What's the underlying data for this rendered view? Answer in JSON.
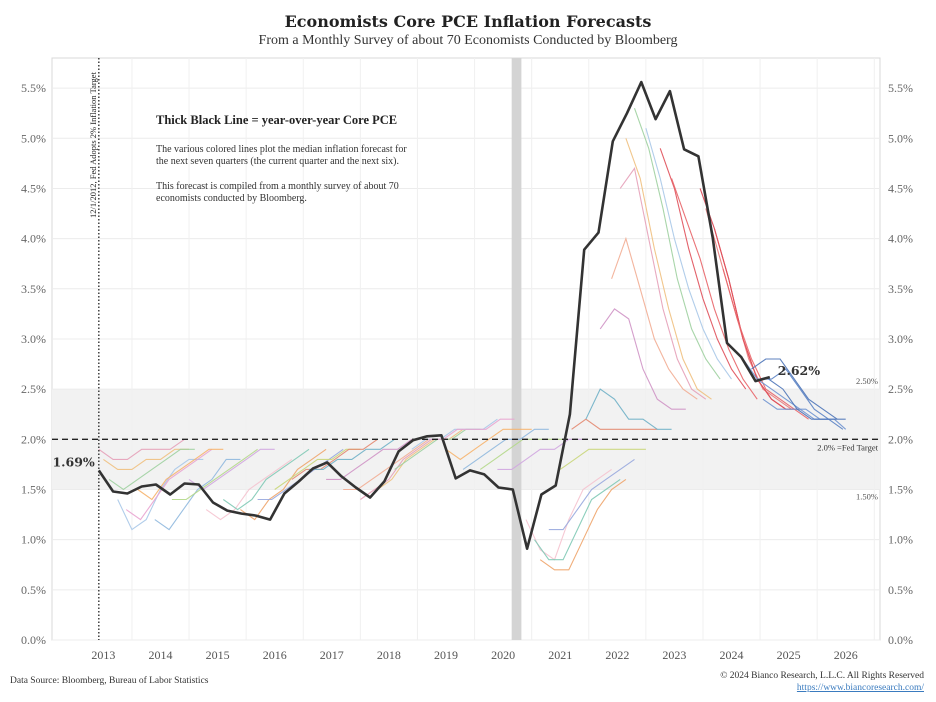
{
  "chart_data": {
    "type": "line",
    "title": "Economists Core PCE Inflation Forecasts",
    "subtitle": "From a Monthly Survey of about 70 Economists Conducted by Bloomberg",
    "y_ticks": [
      "0.0%",
      "0.5%",
      "1.0%",
      "1.5%",
      "2.0%",
      "2.5%",
      "3.0%",
      "3.5%",
      "4.0%",
      "4.5%",
      "5.0%",
      "5.5%"
    ],
    "ylim": [
      0,
      5.8
    ],
    "x_ticks": [
      "2013",
      "2014",
      "2015",
      "2016",
      "2017",
      "2018",
      "2019",
      "2020",
      "2021",
      "2022",
      "2023",
      "2024",
      "2025",
      "2026"
    ],
    "xlim": [
      2012.1,
      2026.6
    ],
    "fed_target": 2.0,
    "fed_target_label": "2.0% =Fed Target",
    "band": [
      1.5,
      2.5
    ],
    "band_upper_label": "2.50%",
    "band_lower_label": "1.50%",
    "vline_label": "12/1/2012, Fed Adopts 2% Inflation Target",
    "vline_x": 2012.92,
    "recession": [
      2020.15,
      2020.32
    ],
    "start_label": "1.69%",
    "end_label": "2.62%",
    "annotation_heading": "Thick Black Line = year-over-year Core PCE",
    "annotation_text_1": "The various colored lines plot the median inflation forecast for",
    "annotation_text_2": "the next seven quarters (the current quarter and the next six).",
    "annotation_text_3": "This forecast is compiled from a monthly survey of about 70",
    "annotation_text_4": "economists conducted by Bloomberg.",
    "actual_series": {
      "name": "Year-over-year Core PCE",
      "x": [
        2012.92,
        2013.17,
        2013.42,
        2013.67,
        2013.92,
        2014.17,
        2014.42,
        2014.67,
        2014.92,
        2015.17,
        2015.42,
        2015.67,
        2015.92,
        2016.17,
        2016.42,
        2016.67,
        2016.92,
        2017.17,
        2017.42,
        2017.67,
        2017.92,
        2018.17,
        2018.42,
        2018.67,
        2018.92,
        2019.17,
        2019.42,
        2019.67,
        2019.92,
        2020.17,
        2020.42,
        2020.67,
        2020.92,
        2021.17,
        2021.42,
        2021.67,
        2021.92,
        2022.17,
        2022.42,
        2022.67,
        2022.92,
        2023.17,
        2023.42,
        2023.67,
        2023.92,
        2024.17,
        2024.42,
        2024.67
      ],
      "values": [
        1.69,
        1.48,
        1.46,
        1.53,
        1.55,
        1.45,
        1.56,
        1.55,
        1.37,
        1.29,
        1.26,
        1.24,
        1.2,
        1.46,
        1.58,
        1.71,
        1.77,
        1.63,
        1.52,
        1.42,
        1.58,
        1.88,
        1.99,
        2.03,
        2.04,
        1.61,
        1.69,
        1.65,
        1.52,
        1.5,
        0.91,
        1.45,
        1.54,
        2.25,
        3.89,
        4.06,
        4.97,
        5.25,
        5.56,
        5.19,
        5.47,
        4.89,
        4.82,
        4.01,
        2.96,
        2.82,
        2.58,
        2.62
      ]
    },
    "forecast_series": [
      {
        "x": [
          2012.92,
          2013.17,
          2013.42,
          2013.67,
          2013.92,
          2014.17,
          2014.42
        ],
        "values": [
          1.9,
          1.8,
          1.8,
          1.9,
          1.9,
          1.9,
          2.0
        ]
      },
      {
        "x": [
          2013.0,
          2013.25,
          2013.5,
          2013.75,
          2014.0,
          2014.25,
          2014.5
        ],
        "values": [
          1.8,
          1.7,
          1.7,
          1.8,
          1.8,
          1.9,
          1.9
        ]
      },
      {
        "x": [
          2013.1,
          2013.35,
          2013.6,
          2013.85,
          2014.1,
          2014.35,
          2014.6
        ],
        "values": [
          1.6,
          1.5,
          1.6,
          1.7,
          1.8,
          1.9,
          1.9
        ]
      },
      {
        "x": [
          2013.25,
          2013.5,
          2013.75,
          2014.0,
          2014.25,
          2014.5,
          2014.75
        ],
        "values": [
          1.4,
          1.1,
          1.2,
          1.5,
          1.7,
          1.8,
          1.8
        ]
      },
      {
        "x": [
          2013.4,
          2013.65,
          2013.9,
          2014.15,
          2014.4,
          2014.65,
          2014.9
        ],
        "values": [
          1.3,
          1.2,
          1.4,
          1.6,
          1.7,
          1.8,
          1.9
        ]
      },
      {
        "x": [
          2013.6,
          2013.85,
          2014.1,
          2014.35,
          2014.6,
          2014.85,
          2015.1
        ],
        "values": [
          1.5,
          1.4,
          1.6,
          1.7,
          1.8,
          1.9,
          1.9
        ]
      },
      {
        "x": [
          2013.9,
          2014.15,
          2014.4,
          2014.65,
          2014.9,
          2015.15,
          2015.4
        ],
        "values": [
          1.2,
          1.1,
          1.3,
          1.5,
          1.6,
          1.8,
          1.8
        ]
      },
      {
        "x": [
          2014.2,
          2014.45,
          2014.7,
          2014.95,
          2015.2,
          2015.45,
          2015.7
        ],
        "values": [
          1.4,
          1.4,
          1.5,
          1.6,
          1.7,
          1.8,
          1.9
        ]
      },
      {
        "x": [
          2014.5,
          2014.75,
          2015.0,
          2015.25,
          2015.5,
          2015.75,
          2016.0
        ],
        "values": [
          1.6,
          1.5,
          1.6,
          1.7,
          1.8,
          1.9,
          1.9
        ]
      },
      {
        "x": [
          2014.8,
          2015.05,
          2015.3,
          2015.55,
          2015.8,
          2016.05,
          2016.3
        ],
        "values": [
          1.3,
          1.2,
          1.3,
          1.5,
          1.6,
          1.7,
          1.8
        ]
      },
      {
        "x": [
          2015.1,
          2015.35,
          2015.6,
          2015.85,
          2016.1,
          2016.35,
          2016.6
        ],
        "values": [
          1.4,
          1.3,
          1.4,
          1.6,
          1.7,
          1.8,
          1.9
        ]
      },
      {
        "x": [
          2015.4,
          2015.65,
          2015.9,
          2016.15,
          2016.4,
          2016.65,
          2016.9
        ],
        "values": [
          1.3,
          1.2,
          1.4,
          1.5,
          1.7,
          1.8,
          1.9
        ]
      },
      {
        "x": [
          2015.7,
          2015.95,
          2016.2,
          2016.45,
          2016.7,
          2016.95,
          2017.2
        ],
        "values": [
          1.4,
          1.4,
          1.5,
          1.6,
          1.7,
          1.8,
          1.9
        ]
      },
      {
        "x": [
          2016.0,
          2016.25,
          2016.5,
          2016.75,
          2017.0,
          2017.25,
          2017.5
        ],
        "values": [
          1.5,
          1.6,
          1.7,
          1.8,
          1.8,
          1.9,
          1.9
        ]
      },
      {
        "x": [
          2016.3,
          2016.55,
          2016.8,
          2017.05,
          2017.3,
          2017.55,
          2017.8
        ],
        "values": [
          1.6,
          1.7,
          1.7,
          1.8,
          1.9,
          1.9,
          2.0
        ]
      },
      {
        "x": [
          2016.6,
          2016.85,
          2017.1,
          2017.35,
          2017.6,
          2017.85,
          2018.1
        ],
        "values": [
          1.7,
          1.7,
          1.8,
          1.8,
          1.9,
          1.9,
          2.0
        ]
      },
      {
        "x": [
          2016.9,
          2017.15,
          2017.4,
          2017.65,
          2017.9,
          2018.15,
          2018.4
        ],
        "values": [
          1.6,
          1.6,
          1.7,
          1.8,
          1.9,
          1.9,
          2.0
        ]
      },
      {
        "x": [
          2017.2,
          2017.45,
          2017.7,
          2017.95,
          2018.2,
          2018.45,
          2018.7
        ],
        "values": [
          1.5,
          1.5,
          1.6,
          1.7,
          1.8,
          1.9,
          2.0
        ]
      },
      {
        "x": [
          2017.5,
          2017.75,
          2018.0,
          2018.25,
          2018.5,
          2018.75,
          2019.0
        ],
        "values": [
          1.4,
          1.5,
          1.6,
          1.8,
          1.9,
          2.0,
          2.0
        ]
      },
      {
        "x": [
          2017.8,
          2018.05,
          2018.3,
          2018.55,
          2018.8,
          2019.05,
          2019.3
        ],
        "values": [
          1.5,
          1.6,
          1.8,
          1.9,
          2.0,
          2.0,
          2.1
        ]
      },
      {
        "x": [
          2018.1,
          2018.35,
          2018.6,
          2018.85,
          2019.1,
          2019.35,
          2019.6
        ],
        "values": [
          1.7,
          1.8,
          1.9,
          2.0,
          2.0,
          2.1,
          2.1
        ]
      },
      {
        "x": [
          2018.4,
          2018.65,
          2018.9,
          2019.15,
          2019.4,
          2019.65,
          2019.9
        ],
        "values": [
          1.9,
          2.0,
          2.0,
          2.1,
          2.1,
          2.1,
          2.2
        ]
      },
      {
        "x": [
          2018.7,
          2018.95,
          2019.2,
          2019.45,
          2019.7,
          2019.95,
          2020.2
        ],
        "values": [
          2.0,
          2.0,
          2.1,
          2.1,
          2.1,
          2.2,
          2.2
        ]
      },
      {
        "x": [
          2019.0,
          2019.25,
          2019.5,
          2019.75,
          2020.0,
          2020.25,
          2020.5
        ],
        "values": [
          1.9,
          1.8,
          1.9,
          2.0,
          2.1,
          2.1,
          2.1
        ]
      },
      {
        "x": [
          2019.3,
          2019.55,
          2019.8,
          2020.05,
          2020.3,
          2020.55,
          2020.8
        ],
        "values": [
          1.7,
          1.8,
          1.9,
          2.0,
          2.0,
          2.1,
          2.1
        ]
      },
      {
        "x": [
          2019.6,
          2019.85,
          2020.1,
          2020.35,
          2020.6,
          2020.85,
          2021.1
        ],
        "values": [
          1.7,
          1.8,
          1.9,
          2.0,
          2.0,
          2.0,
          2.0
        ]
      },
      {
        "x": [
          2019.9,
          2020.15,
          2020.4,
          2020.65,
          2020.9,
          2021.15,
          2021.4
        ],
        "values": [
          1.7,
          1.7,
          1.8,
          1.9,
          1.9,
          2.0,
          2.0
        ]
      },
      {
        "x": [
          2020.4,
          2020.65,
          2020.9,
          2021.15,
          2021.4,
          2021.65,
          2021.9
        ],
        "values": [
          1.2,
          0.9,
          0.8,
          1.2,
          1.5,
          1.6,
          1.7
        ]
      },
      {
        "x": [
          2020.55,
          2020.8,
          2021.05,
          2021.3,
          2021.55,
          2021.8,
          2022.05
        ],
        "values": [
          1.0,
          0.8,
          0.8,
          1.1,
          1.4,
          1.5,
          1.6
        ]
      },
      {
        "x": [
          2020.65,
          2020.9,
          2021.15,
          2021.4,
          2021.65,
          2021.9,
          2022.15
        ],
        "values": [
          0.8,
          0.7,
          0.7,
          1.0,
          1.3,
          1.5,
          1.6
        ]
      },
      {
        "x": [
          2020.8,
          2021.05,
          2021.3,
          2021.55,
          2021.8,
          2022.05,
          2022.3
        ],
        "values": [
          1.1,
          1.1,
          1.3,
          1.5,
          1.6,
          1.7,
          1.8
        ]
      },
      {
        "x": [
          2021.0,
          2021.25,
          2021.5,
          2021.75,
          2022.0,
          2022.25,
          2022.5
        ],
        "values": [
          1.7,
          1.8,
          1.9,
          1.9,
          1.9,
          1.9,
          1.9
        ]
      },
      {
        "x": [
          2021.2,
          2021.45,
          2021.7,
          2021.95,
          2022.2,
          2022.45,
          2022.7
        ],
        "values": [
          2.1,
          2.2,
          2.1,
          2.1,
          2.1,
          2.1,
          2.1
        ]
      },
      {
        "x": [
          2021.45,
          2021.7,
          2021.95,
          2022.2,
          2022.45,
          2022.7,
          2022.95
        ],
        "values": [
          2.2,
          2.5,
          2.4,
          2.2,
          2.2,
          2.1,
          2.1
        ]
      },
      {
        "x": [
          2021.7,
          2021.95,
          2022.2,
          2022.45,
          2022.7,
          2022.95,
          2023.2
        ],
        "values": [
          3.1,
          3.3,
          3.2,
          2.7,
          2.4,
          2.3,
          2.3
        ]
      },
      {
        "x": [
          2021.9,
          2022.15,
          2022.4,
          2022.65,
          2022.9,
          2023.15,
          2023.4
        ],
        "values": [
          3.6,
          4.0,
          3.5,
          3.0,
          2.7,
          2.5,
          2.4
        ]
      },
      {
        "x": [
          2022.05,
          2022.3,
          2022.55,
          2022.8,
          2023.05,
          2023.3,
          2023.55
        ],
        "values": [
          4.5,
          4.7,
          4.0,
          3.3,
          2.8,
          2.5,
          2.4
        ]
      },
      {
        "x": [
          2022.15,
          2022.4,
          2022.65,
          2022.9,
          2023.15,
          2023.4,
          2023.65
        ],
        "values": [
          5.0,
          4.6,
          3.9,
          3.3,
          2.8,
          2.5,
          2.4
        ]
      },
      {
        "x": [
          2022.3,
          2022.55,
          2022.8,
          2023.05,
          2023.3,
          2023.55,
          2023.8
        ],
        "values": [
          5.3,
          4.9,
          4.3,
          3.6,
          3.1,
          2.8,
          2.6
        ]
      },
      {
        "x": [
          2022.5,
          2022.75,
          2023.0,
          2023.25,
          2023.5,
          2023.75,
          2024.0
        ],
        "values": [
          5.1,
          4.6,
          4.0,
          3.5,
          3.1,
          2.8,
          2.6
        ]
      },
      {
        "x": [
          2022.75,
          2023.0,
          2023.25,
          2023.5,
          2023.75,
          2024.0,
          2024.25
        ],
        "values": [
          4.9,
          4.5,
          3.9,
          3.4,
          3.0,
          2.7,
          2.5
        ]
      },
      {
        "x": [
          2022.95,
          2023.2,
          2023.45,
          2023.7,
          2023.95,
          2024.2,
          2024.45
        ],
        "values": [
          4.6,
          4.2,
          3.8,
          3.3,
          2.9,
          2.6,
          2.4
        ]
      },
      {
        "x": [
          2023.45,
          2023.7,
          2023.95,
          2024.2,
          2024.45,
          2024.7,
          2024.95
        ],
        "values": [
          4.5,
          4.1,
          3.6,
          3.0,
          2.6,
          2.4,
          2.3
        ]
      },
      {
        "x": [
          2023.55,
          2023.8,
          2024.05,
          2024.3,
          2024.55,
          2024.8,
          2025.05
        ],
        "values": [
          4.3,
          3.8,
          3.3,
          2.8,
          2.5,
          2.4,
          2.3
        ]
      },
      {
        "x": [
          2023.7,
          2023.95,
          2024.2,
          2024.45,
          2024.7,
          2024.95,
          2025.2
        ],
        "values": [
          4.1,
          3.6,
          3.0,
          2.6,
          2.4,
          2.3,
          2.3
        ]
      },
      {
        "x": [
          2023.85,
          2024.1,
          2024.35,
          2024.6,
          2024.85,
          2025.1,
          2025.35
        ],
        "values": [
          3.7,
          3.2,
          2.8,
          2.5,
          2.4,
          2.3,
          2.2
        ]
      },
      {
        "x": [
          2024.2,
          2024.45,
          2024.7,
          2024.95,
          2025.2,
          2025.45,
          2025.7
        ],
        "values": [
          2.8,
          2.6,
          2.5,
          2.4,
          2.3,
          2.2,
          2.2
        ]
      },
      {
        "x": [
          2024.35,
          2024.6,
          2024.85,
          2025.1,
          2025.35,
          2025.6,
          2025.85
        ],
        "values": [
          2.7,
          2.8,
          2.8,
          2.6,
          2.4,
          2.3,
          2.2
        ]
      },
      {
        "x": [
          2024.45,
          2024.7,
          2024.95,
          2025.2,
          2025.45,
          2025.7,
          2025.95
        ],
        "values": [
          2.6,
          2.6,
          2.7,
          2.5,
          2.3,
          2.2,
          2.1
        ]
      },
      {
        "x": [
          2024.55,
          2024.8,
          2025.05,
          2025.3,
          2025.55,
          2025.8,
          2026.0
        ],
        "values": [
          2.4,
          2.3,
          2.3,
          2.3,
          2.2,
          2.2,
          2.1
        ]
      },
      {
        "x": [
          2024.65,
          2024.9,
          2025.15,
          2025.4,
          2025.65,
          2025.9,
          2026.0
        ],
        "values": [
          2.6,
          2.5,
          2.3,
          2.2,
          2.2,
          2.2,
          2.2
        ]
      }
    ],
    "series_colors": [
      "#e6a0b8",
      "#f0c080",
      "#9fd0a0",
      "#a8c8e8",
      "#e9a4d0",
      "#f6b26b",
      "#8fb8de",
      "#b4d88a",
      "#d0a6e0",
      "#f5c3cf",
      "#7fc9b5",
      "#eea46a",
      "#98a8de",
      "#c9d67a",
      "#e3876f",
      "#6fb0c7",
      "#cf93c5",
      "#f2ad94"
    ],
    "recent_colors": [
      "#e0505a",
      "#e86468",
      "#d9404e",
      "#e87a7a"
    ],
    "recent_blue_colors": [
      "#5a82c4",
      "#6f94d0",
      "#4c74b8"
    ],
    "actual_color": "#333333"
  },
  "footer": {
    "source": "Data Source: Bloomberg, Bureau of Labor Statistics",
    "copyright": "© 2024 Bianco Research, L.L.C. All Rights Reserved",
    "url": "https://www.biancoresearch.com/"
  }
}
